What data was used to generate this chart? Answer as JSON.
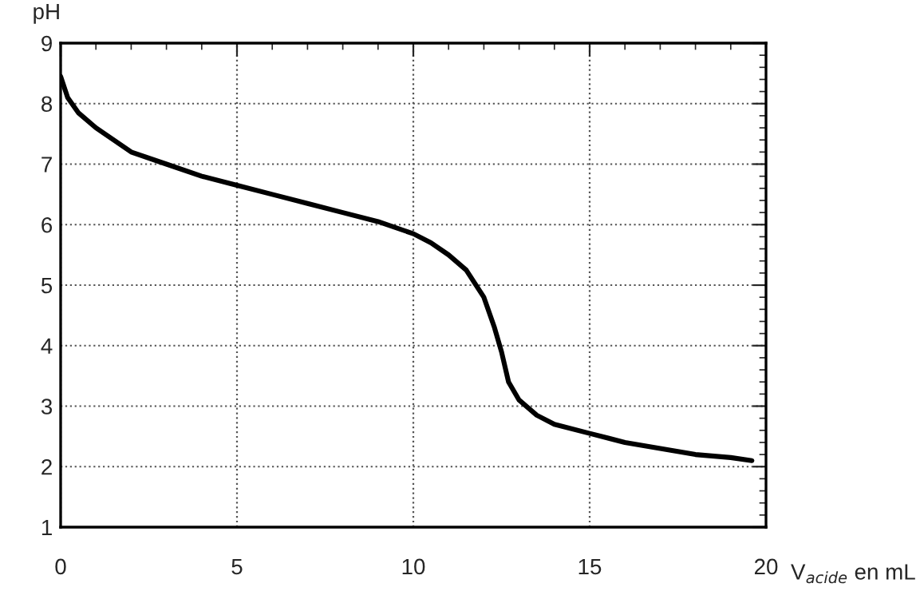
{
  "chart_data": {
    "type": "line",
    "ylabel": "pH",
    "xlabel": "V$_{acide}$ en mL",
    "series": [
      {
        "color": "#000000",
        "x": [
          0,
          0.2,
          0.5,
          1,
          2,
          3,
          4,
          5,
          6,
          7,
          8,
          9,
          10,
          10.5,
          11,
          11.5,
          12,
          12.3,
          12.5,
          12.7,
          13,
          13.5,
          14,
          15,
          16,
          17,
          18,
          19,
          19.6
        ],
        "values": [
          8.45,
          8.1,
          7.85,
          7.6,
          7.2,
          7.0,
          6.8,
          6.65,
          6.5,
          6.35,
          6.2,
          6.05,
          5.85,
          5.7,
          5.5,
          5.25,
          4.8,
          4.3,
          3.9,
          3.4,
          3.1,
          2.85,
          2.7,
          2.55,
          2.4,
          2.3,
          2.2,
          2.15,
          2.1
        ]
      }
    ],
    "xlim": [
      0,
      20
    ],
    "xticks": [
      0,
      5,
      10,
      15,
      20
    ],
    "ylim": [
      1,
      9
    ],
    "yticks": [
      1,
      2,
      3,
      4,
      5,
      6,
      7,
      8,
      9
    ],
    "grid": true,
    "marker": "none",
    "line_style": "solid"
  }
}
